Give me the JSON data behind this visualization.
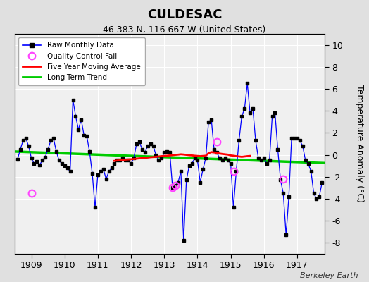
{
  "title": "CULDESAC",
  "subtitle": "46.383 N, 116.667 W (United States)",
  "credit": "Berkeley Earth",
  "ylabel": "Temperature Anomaly (°C)",
  "ylim": [
    -9,
    11
  ],
  "yticks": [
    -8,
    -6,
    -4,
    -2,
    0,
    2,
    4,
    6,
    8,
    10
  ],
  "xlim": [
    1908.5,
    1917.83
  ],
  "xticks": [
    1909,
    1910,
    1911,
    1912,
    1913,
    1914,
    1915,
    1916,
    1917
  ],
  "fig_bg_color": "#e0e0e0",
  "plot_bg_color": "#f0f0f0",
  "grid_color": "#ffffff",
  "raw_color": "#0000ff",
  "raw_marker_color": "#000000",
  "ma_color": "#ff0000",
  "trend_color": "#00cc00",
  "qc_color": "#ff44ff",
  "monthly_data": [
    [
      1908.583,
      -0.4
    ],
    [
      1908.667,
      0.5
    ],
    [
      1908.75,
      1.3
    ],
    [
      1908.833,
      1.5
    ],
    [
      1908.917,
      0.8
    ],
    [
      1909.0,
      -0.3
    ],
    [
      1909.083,
      -0.8
    ],
    [
      1909.167,
      -0.6
    ],
    [
      1909.25,
      -0.9
    ],
    [
      1909.333,
      -0.5
    ],
    [
      1909.417,
      -0.2
    ],
    [
      1909.5,
      0.5
    ],
    [
      1909.583,
      1.3
    ],
    [
      1909.667,
      1.5
    ],
    [
      1909.75,
      0.3
    ],
    [
      1909.833,
      -0.5
    ],
    [
      1909.917,
      -0.8
    ],
    [
      1910.0,
      -1.0
    ],
    [
      1910.083,
      -1.2
    ],
    [
      1910.167,
      -1.5
    ],
    [
      1910.25,
      5.0
    ],
    [
      1910.333,
      3.5
    ],
    [
      1910.417,
      2.3
    ],
    [
      1910.5,
      3.2
    ],
    [
      1910.583,
      1.8
    ],
    [
      1910.667,
      1.7
    ],
    [
      1910.75,
      0.3
    ],
    [
      1910.833,
      -1.7
    ],
    [
      1910.917,
      -4.8
    ],
    [
      1911.0,
      -1.8
    ],
    [
      1911.083,
      -1.5
    ],
    [
      1911.167,
      -1.3
    ],
    [
      1911.25,
      -2.2
    ],
    [
      1911.333,
      -1.5
    ],
    [
      1911.417,
      -1.2
    ],
    [
      1911.5,
      -0.8
    ],
    [
      1911.583,
      -0.5
    ],
    [
      1911.667,
      -0.5
    ],
    [
      1911.75,
      -0.3
    ],
    [
      1911.833,
      -0.5
    ],
    [
      1911.917,
      -0.5
    ],
    [
      1912.0,
      -0.8
    ],
    [
      1912.083,
      -0.3
    ],
    [
      1912.167,
      1.0
    ],
    [
      1912.25,
      1.2
    ],
    [
      1912.333,
      0.5
    ],
    [
      1912.417,
      0.2
    ],
    [
      1912.5,
      0.8
    ],
    [
      1912.583,
      1.0
    ],
    [
      1912.667,
      0.8
    ],
    [
      1912.75,
      0.0
    ],
    [
      1912.833,
      -0.5
    ],
    [
      1912.917,
      -0.3
    ],
    [
      1913.0,
      0.2
    ],
    [
      1913.083,
      0.3
    ],
    [
      1913.167,
      0.2
    ],
    [
      1913.25,
      -3.0
    ],
    [
      1913.333,
      -2.8
    ],
    [
      1913.417,
      -2.5
    ],
    [
      1913.5,
      -1.5
    ],
    [
      1913.583,
      -7.8
    ],
    [
      1913.667,
      -2.3
    ],
    [
      1913.75,
      -1.0
    ],
    [
      1913.833,
      -0.8
    ],
    [
      1913.917,
      -0.3
    ],
    [
      1914.0,
      -0.5
    ],
    [
      1914.083,
      -2.5
    ],
    [
      1914.167,
      -1.3
    ],
    [
      1914.25,
      -0.3
    ],
    [
      1914.333,
      3.0
    ],
    [
      1914.417,
      3.2
    ],
    [
      1914.5,
      0.5
    ],
    [
      1914.583,
      0.2
    ],
    [
      1914.667,
      -0.3
    ],
    [
      1914.75,
      -0.5
    ],
    [
      1914.833,
      -0.3
    ],
    [
      1914.917,
      -0.5
    ],
    [
      1915.0,
      -0.8
    ],
    [
      1915.083,
      -4.8
    ],
    [
      1915.167,
      -1.5
    ],
    [
      1915.25,
      1.3
    ],
    [
      1915.333,
      3.5
    ],
    [
      1915.417,
      4.2
    ],
    [
      1915.5,
      6.5
    ],
    [
      1915.583,
      3.8
    ],
    [
      1915.667,
      4.2
    ],
    [
      1915.75,
      1.3
    ],
    [
      1915.833,
      -0.3
    ],
    [
      1915.917,
      -0.5
    ],
    [
      1916.0,
      -0.3
    ],
    [
      1916.083,
      -0.8
    ],
    [
      1916.167,
      -0.5
    ],
    [
      1916.25,
      3.5
    ],
    [
      1916.333,
      3.8
    ],
    [
      1916.417,
      0.5
    ],
    [
      1916.5,
      -2.3
    ],
    [
      1916.583,
      -3.5
    ],
    [
      1916.667,
      -7.3
    ],
    [
      1916.75,
      -3.8
    ],
    [
      1916.833,
      1.5
    ],
    [
      1916.917,
      1.5
    ],
    [
      1917.0,
      1.5
    ],
    [
      1917.083,
      1.3
    ],
    [
      1917.167,
      0.8
    ],
    [
      1917.25,
      -0.5
    ],
    [
      1917.333,
      -0.8
    ],
    [
      1917.417,
      -1.5
    ],
    [
      1917.5,
      -3.5
    ],
    [
      1917.583,
      -4.0
    ],
    [
      1917.667,
      -3.8
    ],
    [
      1917.75,
      -2.5
    ]
  ],
  "isolated_point": [
    1917.75,
    -2.5
  ],
  "qc_fail_points": [
    [
      1909.0,
      -3.5
    ],
    [
      1913.25,
      -3.0
    ],
    [
      1913.333,
      -2.8
    ],
    [
      1914.583,
      1.2
    ],
    [
      1915.083,
      -1.5
    ],
    [
      1916.583,
      -2.2
    ]
  ],
  "moving_avg": [
    [
      1911.5,
      -0.55
    ],
    [
      1911.583,
      -0.52
    ],
    [
      1911.667,
      -0.5
    ],
    [
      1911.75,
      -0.47
    ],
    [
      1911.833,
      -0.44
    ],
    [
      1911.917,
      -0.42
    ],
    [
      1912.0,
      -0.4
    ],
    [
      1912.083,
      -0.38
    ],
    [
      1912.167,
      -0.35
    ],
    [
      1912.25,
      -0.32
    ],
    [
      1912.333,
      -0.3
    ],
    [
      1912.417,
      -0.28
    ],
    [
      1912.5,
      -0.25
    ],
    [
      1912.583,
      -0.22
    ],
    [
      1912.667,
      -0.2
    ],
    [
      1912.75,
      -0.18
    ],
    [
      1912.833,
      -0.15
    ],
    [
      1912.917,
      -0.12
    ],
    [
      1913.0,
      -0.1
    ],
    [
      1913.083,
      -0.08
    ],
    [
      1913.167,
      -0.05
    ],
    [
      1913.25,
      -0.03
    ],
    [
      1913.333,
      0.0
    ],
    [
      1913.417,
      0.02
    ],
    [
      1913.5,
      0.05
    ],
    [
      1913.583,
      0.03
    ],
    [
      1913.667,
      0.0
    ],
    [
      1913.75,
      -0.03
    ],
    [
      1913.833,
      -0.05
    ],
    [
      1913.917,
      -0.08
    ],
    [
      1914.0,
      -0.1
    ],
    [
      1914.083,
      -0.12
    ],
    [
      1914.167,
      -0.1
    ],
    [
      1914.25,
      -0.08
    ],
    [
      1914.333,
      0.15
    ],
    [
      1914.417,
      0.25
    ],
    [
      1914.5,
      0.22
    ],
    [
      1914.583,
      0.18
    ],
    [
      1914.667,
      0.12
    ],
    [
      1914.75,
      0.08
    ],
    [
      1914.833,
      0.05
    ],
    [
      1914.917,
      0.02
    ],
    [
      1915.0,
      -0.05
    ],
    [
      1915.083,
      -0.08
    ],
    [
      1915.167,
      -0.12
    ],
    [
      1915.25,
      -0.15
    ],
    [
      1915.333,
      -0.18
    ],
    [
      1915.417,
      -0.15
    ],
    [
      1915.5,
      -0.12
    ],
    [
      1915.583,
      -0.1
    ]
  ],
  "trend_line": [
    [
      1908.5,
      0.3
    ],
    [
      1917.83,
      -0.75
    ]
  ]
}
